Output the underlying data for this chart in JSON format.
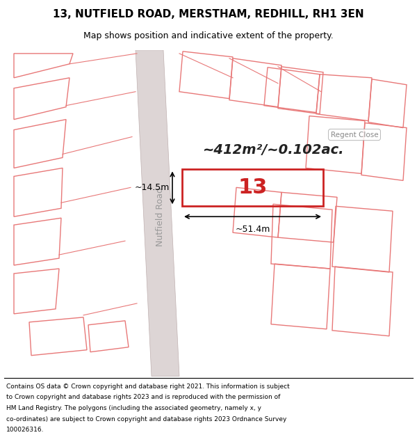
{
  "title_line1": "13, NUTFIELD ROAD, MERSTHAM, REDHILL, RH1 3EN",
  "title_line2": "Map shows position and indicative extent of the property.",
  "area_label": "~412m²/~0.102ac.",
  "number_label": "13",
  "dim_width": "~51.4m",
  "dim_height": "~14.5m",
  "footer_lines": [
    "Contains OS data © Crown copyright and database right 2021. This information is subject",
    "to Crown copyright and database rights 2023 and is reproduced with the permission of",
    "HM Land Registry. The polygons (including the associated geometry, namely x, y",
    "co-ordinates) are subject to Crown copyright and database rights 2023 Ordnance Survey",
    "100026316."
  ],
  "road_label": "Nutfield Road",
  "regent_close_label": "Regent Close",
  "building_outline_color": "#e87878",
  "highlight_color": "#cc2222",
  "map_bg": "#f7f0f0"
}
